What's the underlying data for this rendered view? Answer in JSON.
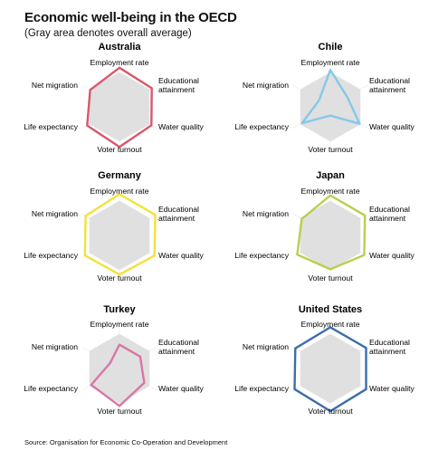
{
  "header": {
    "title": "Economic well-being in the OECD",
    "subtitle": "(Gray area denotes overall average)"
  },
  "footer": {
    "source": "Source: Organisation for Economic Co-Operation and Development"
  },
  "colors": {
    "average_fill": "#e0e0e0",
    "australia": "#d9576a",
    "chile": "#85c8ea",
    "germany": "#f3e23c",
    "japan": "#b9d04e",
    "turkey": "#d876a5",
    "united_states": "#3c6eaa"
  },
  "chart_data": [
    {
      "type": "radar",
      "title": "Australia",
      "axes": [
        "Employment rate",
        "Educational attainment",
        "Water quality",
        "Voter turnout",
        "Life expectancy",
        "Net migration"
      ],
      "average": [
        0.8,
        0.8,
        0.8,
        0.8,
        0.8,
        0.8
      ],
      "values": [
        0.9,
        0.86,
        0.85,
        0.92,
        0.86,
        0.78
      ],
      "color": "#d9576a"
    },
    {
      "type": "radar",
      "title": "Chile",
      "axes": [
        "Employment rate",
        "Educational attainment",
        "Water quality",
        "Voter turnout",
        "Life expectancy",
        "Net migration"
      ],
      "average": [
        0.8,
        0.8,
        0.8,
        0.8,
        0.8,
        0.8
      ],
      "values": [
        0.85,
        0.45,
        0.78,
        0.2,
        0.75,
        0.3
      ],
      "color": "#85c8ea"
    },
    {
      "type": "radar",
      "title": "Germany",
      "axes": [
        "Employment rate",
        "Educational attainment",
        "Water quality",
        "Voter turnout",
        "Life expectancy",
        "Net migration"
      ],
      "average": [
        0.8,
        0.8,
        0.8,
        0.8,
        0.8,
        0.8
      ],
      "values": [
        0.95,
        0.95,
        0.93,
        0.9,
        0.92,
        0.9
      ],
      "color": "#f3e23c"
    },
    {
      "type": "radar",
      "title": "Japan",
      "axes": [
        "Employment rate",
        "Educational attainment",
        "Water quality",
        "Voter turnout",
        "Life expectancy",
        "Net migration"
      ],
      "average": [
        0.8,
        0.8,
        0.8,
        0.8,
        0.8,
        0.8
      ],
      "values": [
        0.92,
        0.92,
        0.9,
        0.78,
        0.88,
        0.76
      ],
      "color": "#b9d04e"
    },
    {
      "type": "radar",
      "title": "Turkey",
      "axes": [
        "Employment rate",
        "Educational attainment",
        "Water quality",
        "Voter turnout",
        "Life expectancy",
        "Net migration"
      ],
      "average": [
        0.8,
        0.8,
        0.8,
        0.8,
        0.8,
        0.8
      ],
      "values": [
        0.55,
        0.55,
        0.66,
        0.86,
        0.75,
        0.25
      ],
      "color": "#d876a5"
    },
    {
      "type": "radar",
      "title": "United States",
      "axes": [
        "Employment rate",
        "Educational attainment",
        "Water quality",
        "Voter turnout",
        "Life expectancy",
        "Net migration"
      ],
      "average": [
        0.8,
        0.8,
        0.8,
        0.8,
        0.8,
        0.8
      ],
      "values": [
        0.95,
        0.95,
        0.95,
        0.98,
        0.95,
        0.93
      ],
      "color": "#3c6eaa"
    }
  ]
}
